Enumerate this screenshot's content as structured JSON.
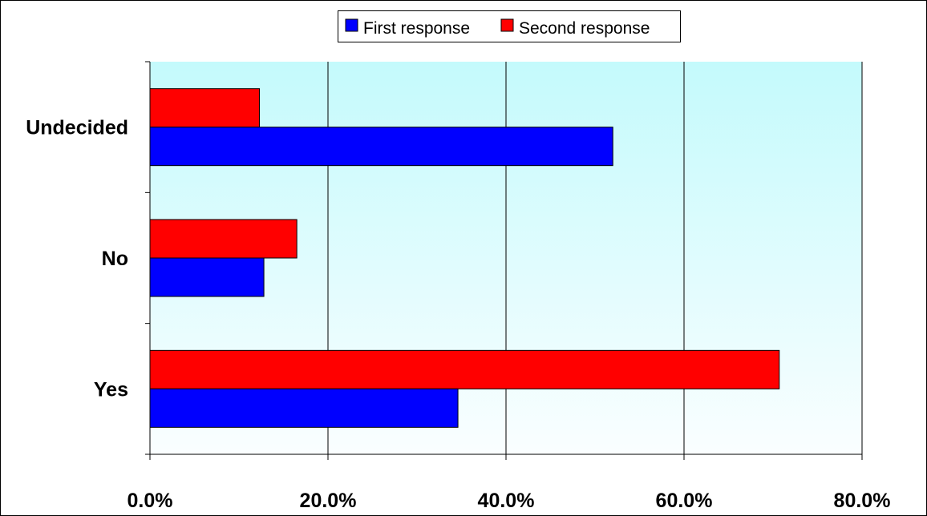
{
  "chart_data": {
    "type": "bar",
    "orientation": "horizontal",
    "categories": [
      "Yes",
      "No",
      "Undecided"
    ],
    "series": [
      {
        "name": "First response",
        "color": "#0000ff",
        "values": [
          34.6,
          12.8,
          52.0
        ]
      },
      {
        "name": "Second response",
        "color": "#ff0000",
        "values": [
          70.7,
          16.5,
          12.3
        ]
      }
    ],
    "xlim": [
      0,
      80
    ],
    "xticks": [
      0,
      20,
      40,
      60,
      80
    ],
    "xtick_labels": [
      "0.0%",
      "20.0%",
      "40.0%",
      "60.0%",
      "80.0%"
    ],
    "title": "",
    "xlabel": "",
    "ylabel": "",
    "grid": "vertical",
    "legend_position": "top",
    "plot_background": "light cyan gradient"
  }
}
